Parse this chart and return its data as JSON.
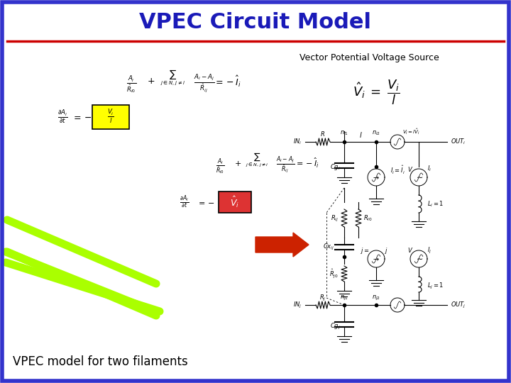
{
  "title": "VPEC Circuit Model",
  "title_color": "#1a1ab8",
  "title_fontsize": 22,
  "subtitle_bottom": "VPEC model for two filaments",
  "subtitle_fontsize": 12,
  "bg_color": "#ffffff",
  "border_color": "#3333cc",
  "border_width": 4,
  "top_line_color": "#cc0000",
  "vp_label": "Vector Potential Voltage Source",
  "green_color": "#aaff00",
  "green_linewidth": 8,
  "arrow_color": "#cc2200"
}
